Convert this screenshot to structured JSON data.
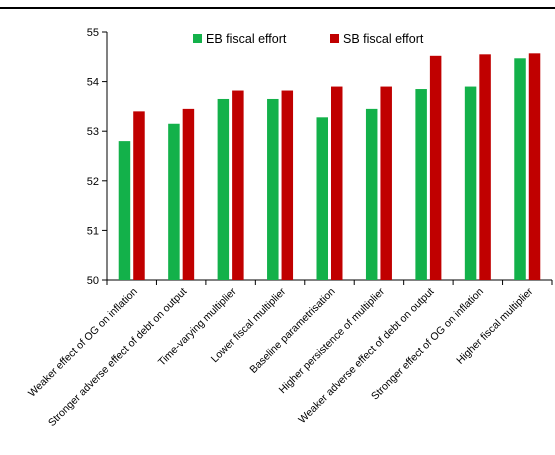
{
  "chart_data": {
    "type": "bar",
    "title": "",
    "xlabel": "",
    "ylabel": "",
    "ylim": [
      50,
      55
    ],
    "yticks": [
      50,
      51,
      52,
      53,
      54,
      55
    ],
    "grid": false,
    "legend_position": "top",
    "categories": [
      "Weaker effect of OG on inflation",
      "Stronger adverse effect of debt on output",
      "Time-varying multiplier",
      "Lower fiscal multiplier",
      "Baseline parametrisation",
      "Higher persistence of multiplier",
      "Weaker adverse effect of debt on output",
      "Stronger effect of OG on inflation",
      "Higher fiscal multiplier"
    ],
    "series": [
      {
        "name": "EB fiscal effort",
        "color": "#13b14a",
        "values": [
          52.8,
          53.15,
          53.65,
          53.65,
          53.28,
          53.45,
          53.85,
          53.9,
          54.47
        ]
      },
      {
        "name": "SB fiscal effort",
        "color": "#c00000",
        "values": [
          53.4,
          53.45,
          53.82,
          53.82,
          53.9,
          53.9,
          54.52,
          54.55,
          54.57
        ]
      }
    ]
  }
}
